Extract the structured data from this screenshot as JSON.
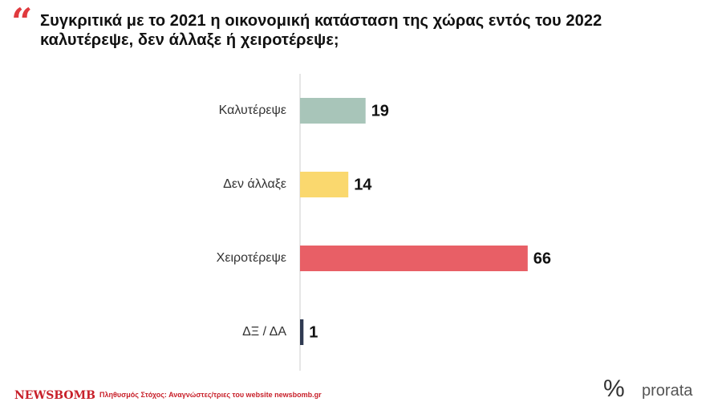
{
  "chart_data": {
    "type": "bar",
    "orientation": "horizontal",
    "quote_mark": "“",
    "title": "Συγκριτικά με το 2021 η οικονομική κατάσταση της χώρας εντός του 2022 καλυτέρεψε, δεν άλλαξε ή χειροτέρεψε;",
    "categories": [
      "Καλυτέρεψε",
      "Δεν άλλαξε",
      "Χειροτέρεψε",
      "ΔΞ / ΔΑ"
    ],
    "values": [
      19,
      14,
      66,
      1
    ],
    "colors": [
      "#a8c5b9",
      "#fad86e",
      "#e85f66",
      "#2f3a52"
    ]
  },
  "footer": {
    "brand": "NEWSBOMB",
    "note": "Πληθυσμός Στόχος: Αναγνώστες/τριες του website newsbomb.gr",
    "icon": "%",
    "logo": "prorata"
  }
}
